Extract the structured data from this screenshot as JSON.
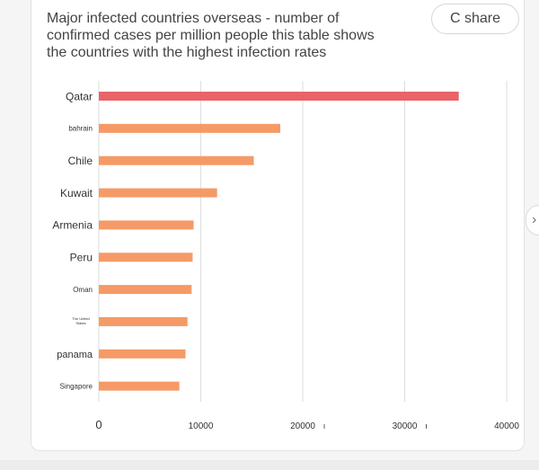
{
  "header": {
    "title": "Major infected countries overseas - number of confirmed cases per million people this table shows the countries with the highest infection rates",
    "share_label": "C share"
  },
  "side_nav": {
    "icon": "chevron-right-icon",
    "glyph": "›"
  },
  "colors": {
    "top_bar": "#e8646a",
    "bar": "#f59a66",
    "grid": "#dddddd",
    "axis_text": "#333333"
  },
  "chart_data": {
    "type": "bar",
    "orientation": "horizontal",
    "title": "Major infected countries overseas - number of confirmed cases per million people this table shows the countries with the highest infection rates",
    "categories": [
      "Qatar",
      "bahrain",
      "Chile",
      "Kuwait",
      "Armenia",
      "Peru",
      "Oman",
      "The United States",
      "panama",
      "Singapore"
    ],
    "values": [
      35300,
      17800,
      15200,
      11600,
      9300,
      9200,
      9100,
      8700,
      8500,
      7900
    ],
    "xlim": [
      0,
      40000
    ],
    "xticks": [
      "0",
      "10000",
      "20000",
      "30000",
      "40000"
    ],
    "tick_marks": [
      "",
      "",
      "ı",
      "ı",
      ""
    ],
    "grid": true
  }
}
